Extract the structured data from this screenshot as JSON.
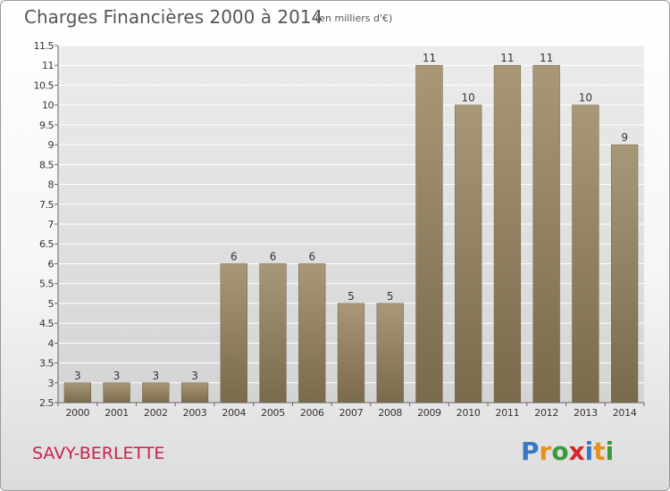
{
  "header": {
    "title": "Charges Financières 2000 à 2014",
    "subtitle": "(en milliers d'€)"
  },
  "footer": {
    "commune": "SAVY-BERLETTE",
    "logo": {
      "letters": [
        "P",
        "r",
        "o",
        "x",
        "i",
        "t",
        "i"
      ],
      "colors": [
        "#3a78c4",
        "#e8901c",
        "#3a9a3a",
        "#d8262e",
        "#3a78c4",
        "#e8901c",
        "#3a9a3a"
      ]
    }
  },
  "chart_data": {
    "type": "bar",
    "title": "Charges Financières 2000 à 2014",
    "subtitle": "(en milliers d'€)",
    "categories": [
      "2000",
      "2001",
      "2002",
      "2003",
      "2004",
      "2005",
      "2006",
      "2007",
      "2008",
      "2009",
      "2010",
      "2011",
      "2012",
      "2013",
      "2014"
    ],
    "values": [
      3,
      3,
      3,
      3,
      6,
      6,
      6,
      5,
      5,
      11,
      10,
      11,
      11,
      10,
      9
    ],
    "data_labels": [
      "3",
      "3",
      "3",
      "3",
      "6",
      "6",
      "6",
      "5",
      "5",
      "11",
      "10",
      "11",
      "11",
      "10",
      "9"
    ],
    "ylim": [
      2.5,
      11.5
    ],
    "yticks": [
      2.5,
      3,
      3.5,
      4,
      4.5,
      5,
      5.5,
      6,
      6.5,
      7,
      7.5,
      8,
      8.5,
      9,
      9.5,
      10,
      10.5,
      11,
      11.5
    ],
    "ytick_labels": [
      "2.5",
      "3",
      "3.5",
      "4",
      "4.5",
      "5",
      "5.5",
      "6",
      "6.5",
      "7",
      "7.5",
      "8",
      "8.5",
      "9",
      "9.5",
      "10",
      "10.5",
      "11",
      "11.5"
    ],
    "grid": true,
    "bar_color": "#8a7a5e"
  }
}
